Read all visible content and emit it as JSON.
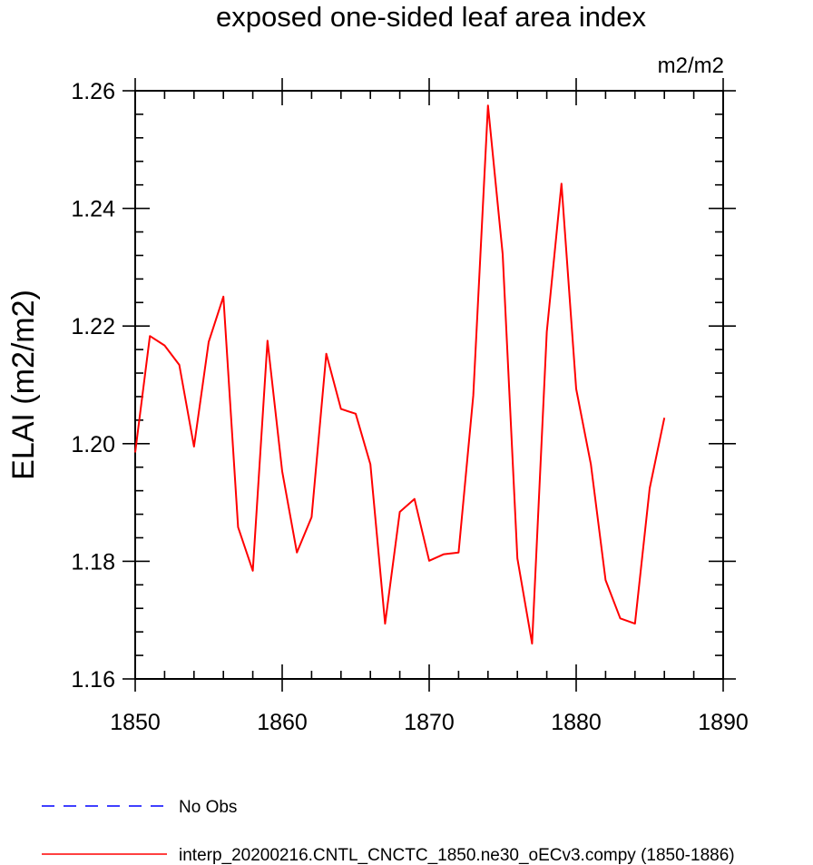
{
  "chart_data": {
    "type": "line",
    "title": "exposed one-sided leaf area index",
    "units_label": "m2/m2",
    "ylabel": "ELAI  (m2/m2)",
    "xlabel": "",
    "xlim": [
      1850,
      1890
    ],
    "ylim": [
      1.16,
      1.26
    ],
    "xticks": [
      1850,
      1860,
      1870,
      1880,
      1890
    ],
    "yticks": [
      1.16,
      1.18,
      1.2,
      1.22,
      1.24,
      1.26
    ],
    "ytick_labels": [
      "1.16",
      "1.18",
      "1.20",
      "1.22",
      "1.24",
      "1.26"
    ],
    "grid": false,
    "legend_position": "bottom",
    "series": [
      {
        "name": "No Obs",
        "color": "#0000ff",
        "style": "dashed",
        "x": [],
        "values": []
      },
      {
        "name": "interp_20200216.CNTL_CNCTC_1850.ne30_oECv3.compy (1850-1886)",
        "color": "#ff0000",
        "style": "solid",
        "x": [
          1850,
          1851,
          1852,
          1853,
          1854,
          1855,
          1856,
          1857,
          1858,
          1859,
          1860,
          1861,
          1862,
          1863,
          1864,
          1865,
          1866,
          1867,
          1868,
          1869,
          1870,
          1871,
          1872,
          1873,
          1874,
          1875,
          1876,
          1877,
          1878,
          1879,
          1880,
          1881,
          1882,
          1883,
          1884,
          1885,
          1886
        ],
        "values": [
          1.1985,
          1.2183,
          1.2167,
          1.2134,
          1.1995,
          1.2173,
          1.225,
          1.1858,
          1.1784,
          1.2175,
          1.1953,
          1.1815,
          1.1875,
          1.2153,
          1.2059,
          1.2051,
          1.1965,
          1.1694,
          1.1884,
          1.1906,
          1.1801,
          1.1812,
          1.1815,
          1.2082,
          1.2575,
          1.2322,
          1.1805,
          1.166,
          1.219,
          1.2442,
          1.2093,
          1.1965,
          1.1768,
          1.1703,
          1.1694,
          1.1924,
          1.2044
        ]
      }
    ]
  }
}
